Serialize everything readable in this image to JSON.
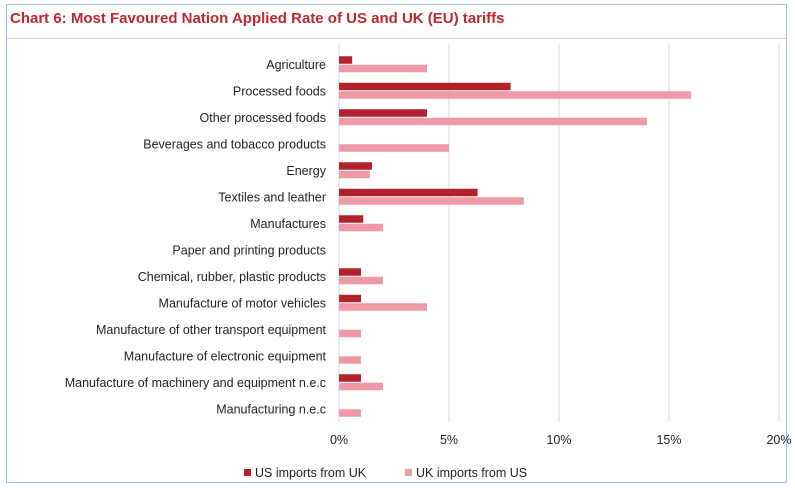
{
  "colors": {
    "us_imports_from_uk": "#b2222c",
    "uk_imports_from_us": "#ee9aa6",
    "grid": "#d9d9d9",
    "title": "#c0272d"
  },
  "chart_data": {
    "type": "bar",
    "orientation": "horizontal",
    "title": "Chart 6: Most Favoured Nation Applied Rate of US and UK (EU) tariffs",
    "xlabel": "",
    "ylabel": "",
    "xlim": [
      0,
      20
    ],
    "xticks": [
      "0%",
      "5%",
      "10%",
      "15%",
      "20%"
    ],
    "grid": "vertical",
    "legend_position": "bottom",
    "categories": [
      "Agriculture",
      "Processed foods",
      "Other processed foods",
      "Beverages and tobacco products",
      "Energy",
      "Textiles and leather",
      "Manufactures",
      "Paper and printing products",
      "Chemical, rubber, plastic products",
      "Manufacture of motor vehicles",
      "Manufacture of other transport equipment",
      "Manufacture of electronic equipment",
      "Manufacture of machinery and equipment n.e.c",
      "Manufacturing n.e.c"
    ],
    "series": [
      {
        "name": "US imports from UK",
        "values": [
          0.6,
          7.8,
          4.0,
          0,
          1.5,
          6.3,
          1.1,
          0,
          1.0,
          1.0,
          0,
          0,
          1.0,
          0
        ]
      },
      {
        "name": "UK imports from US",
        "values": [
          4.0,
          16.0,
          14.0,
          5.0,
          1.4,
          8.4,
          2.0,
          0,
          2.0,
          4.0,
          1.0,
          1.0,
          2.0,
          1.0
        ]
      }
    ]
  }
}
